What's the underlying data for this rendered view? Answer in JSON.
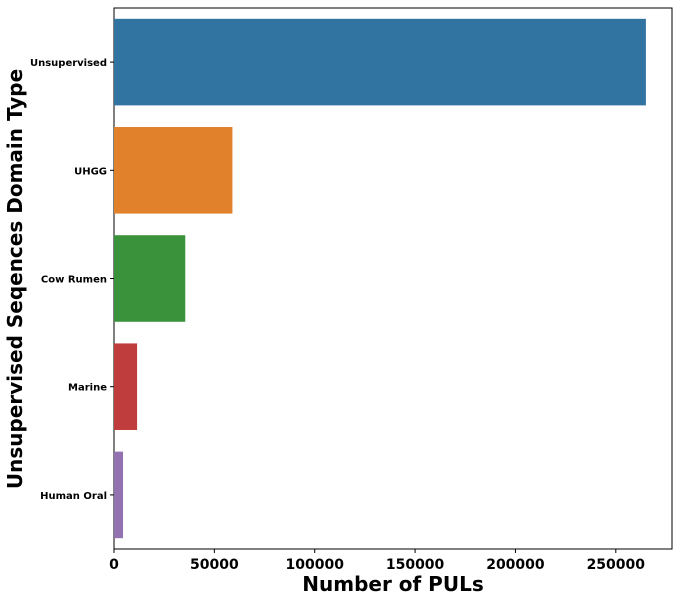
{
  "chart_data": {
    "type": "bar",
    "orientation": "horizontal",
    "categories": [
      "Unsupervised",
      "UHGG",
      "Cow Rumen",
      "Marine",
      "Human Oral"
    ],
    "values": [
      265000,
      59000,
      35500,
      11500,
      4500
    ],
    "colors": [
      "#3274a1",
      "#e1812c",
      "#3a923a",
      "#c03d3e",
      "#9372b2"
    ],
    "xlabel": "Number of PULs",
    "ylabel": "Unsupervised Seqences Domain Type",
    "xlim": [
      0,
      278000
    ],
    "xticks": [
      0,
      50000,
      100000,
      150000,
      200000,
      250000
    ],
    "xtick_labels": [
      "0",
      "50000",
      "100000",
      "150000",
      "200000",
      "250000"
    ],
    "grid": false
  }
}
